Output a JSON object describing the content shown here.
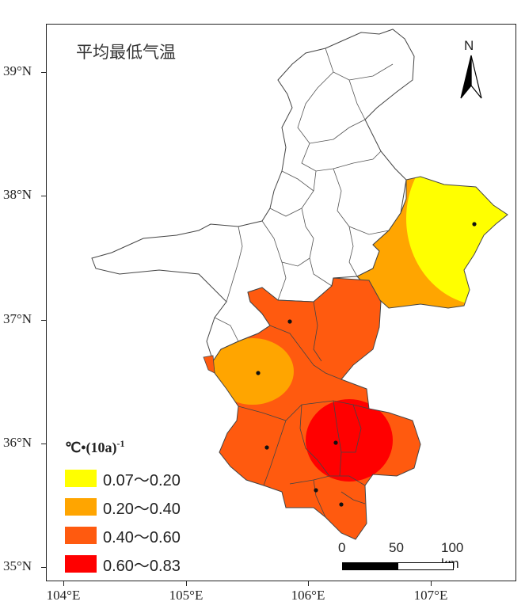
{
  "map": {
    "title": "平均最低气温",
    "north_label": "N",
    "lat_labels": [
      "39°N",
      "38°N",
      "37°N",
      "36°N",
      "35°N"
    ],
    "lon_labels": [
      "104°E",
      "105°E",
      "106°E",
      "107°E"
    ],
    "legend": {
      "title_main": "℃•(10a)",
      "title_sup": "-1",
      "items": [
        {
          "label": "0.07～0.20",
          "color": "#ffff00"
        },
        {
          "label": "0.20～0.40",
          "color": "#ffa500"
        },
        {
          "label": "0.40～0.60",
          "color": "#ff5a0f"
        },
        {
          "label": "0.60～0.83",
          "color": "#ff0000"
        }
      ]
    },
    "scale": {
      "labels": [
        "0",
        "50",
        "100 km"
      ]
    },
    "colors": {
      "yellow": "#ffff00",
      "orange": "#ffa500",
      "dark_orange": "#ff5a0f",
      "red": "#ff0000",
      "outline": "#444444"
    }
  }
}
